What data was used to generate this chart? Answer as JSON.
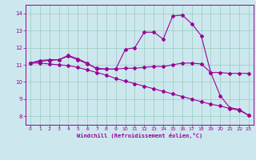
{
  "xlabel": "Windchill (Refroidissement éolien,°C)",
  "bg_color": "#cce8ee",
  "grid_color": "#99ccbb",
  "line_color": "#990099",
  "ylim": [
    7.5,
    14.5
  ],
  "xlim": [
    -0.5,
    23.5
  ],
  "yticks": [
    8,
    9,
    10,
    11,
    12,
    13,
    14
  ],
  "xticks": [
    0,
    1,
    2,
    3,
    4,
    5,
    6,
    7,
    8,
    9,
    10,
    11,
    12,
    13,
    14,
    15,
    16,
    17,
    18,
    19,
    20,
    21,
    22,
    23
  ],
  "line1_x": [
    0,
    1,
    2,
    3,
    4,
    5,
    6,
    7,
    8,
    9,
    10,
    11,
    12,
    13,
    14,
    15,
    16,
    17,
    18,
    19,
    20,
    21,
    22,
    23
  ],
  "line1_y": [
    11.1,
    11.25,
    11.3,
    11.3,
    11.55,
    11.35,
    11.1,
    10.75,
    10.75,
    10.75,
    11.9,
    12.0,
    12.9,
    12.9,
    12.5,
    13.85,
    13.9,
    13.4,
    12.7,
    10.55,
    9.2,
    8.5,
    8.4,
    8.05
  ],
  "line2_x": [
    0,
    1,
    2,
    3,
    4,
    5,
    6,
    7,
    8,
    9,
    10,
    11,
    12,
    13,
    14,
    15,
    16,
    17,
    18,
    19,
    20,
    21,
    22,
    23
  ],
  "line2_y": [
    11.1,
    11.2,
    11.25,
    11.3,
    11.5,
    11.3,
    11.05,
    10.8,
    10.75,
    10.75,
    10.8,
    10.8,
    10.85,
    10.9,
    10.9,
    11.0,
    11.1,
    11.1,
    11.05,
    10.55,
    10.55,
    10.5,
    10.5,
    10.5
  ],
  "line3_x": [
    0,
    1,
    2,
    3,
    4,
    5,
    6,
    7,
    8,
    9,
    10,
    11,
    12,
    13,
    14,
    15,
    16,
    17,
    18,
    19,
    20,
    21,
    22,
    23
  ],
  "line3_y": [
    11.1,
    11.1,
    11.05,
    11.0,
    10.95,
    10.85,
    10.7,
    10.55,
    10.4,
    10.2,
    10.05,
    9.9,
    9.75,
    9.6,
    9.45,
    9.3,
    9.15,
    9.0,
    8.85,
    8.7,
    8.6,
    8.45,
    8.35,
    8.05
  ]
}
